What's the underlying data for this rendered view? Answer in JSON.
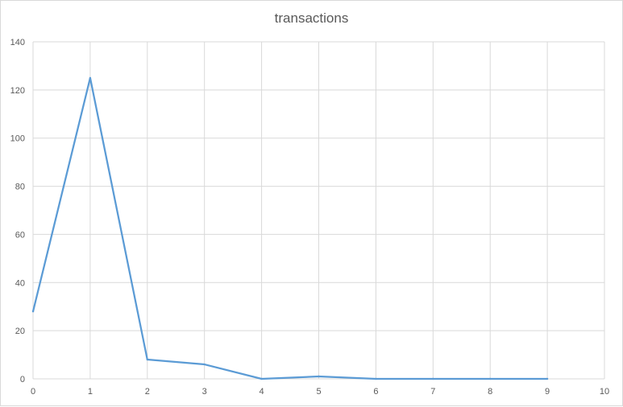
{
  "chart_data": {
    "type": "line",
    "title": "transactions",
    "xlabel": "",
    "ylabel": "",
    "xlim": [
      0,
      10
    ],
    "ylim": [
      0,
      140
    ],
    "x_ticks": [
      0,
      1,
      2,
      3,
      4,
      5,
      6,
      7,
      8,
      9,
      10
    ],
    "y_ticks": [
      0,
      20,
      40,
      60,
      80,
      100,
      120,
      140
    ],
    "grid": true,
    "legend": "none",
    "series": [
      {
        "color": "#5b9bd5",
        "x": [
          0,
          1,
          2,
          3,
          4,
          5,
          6,
          7,
          8,
          9
        ],
        "values": [
          28,
          125,
          8,
          6,
          0,
          1,
          0,
          0,
          0,
          0
        ]
      }
    ]
  }
}
